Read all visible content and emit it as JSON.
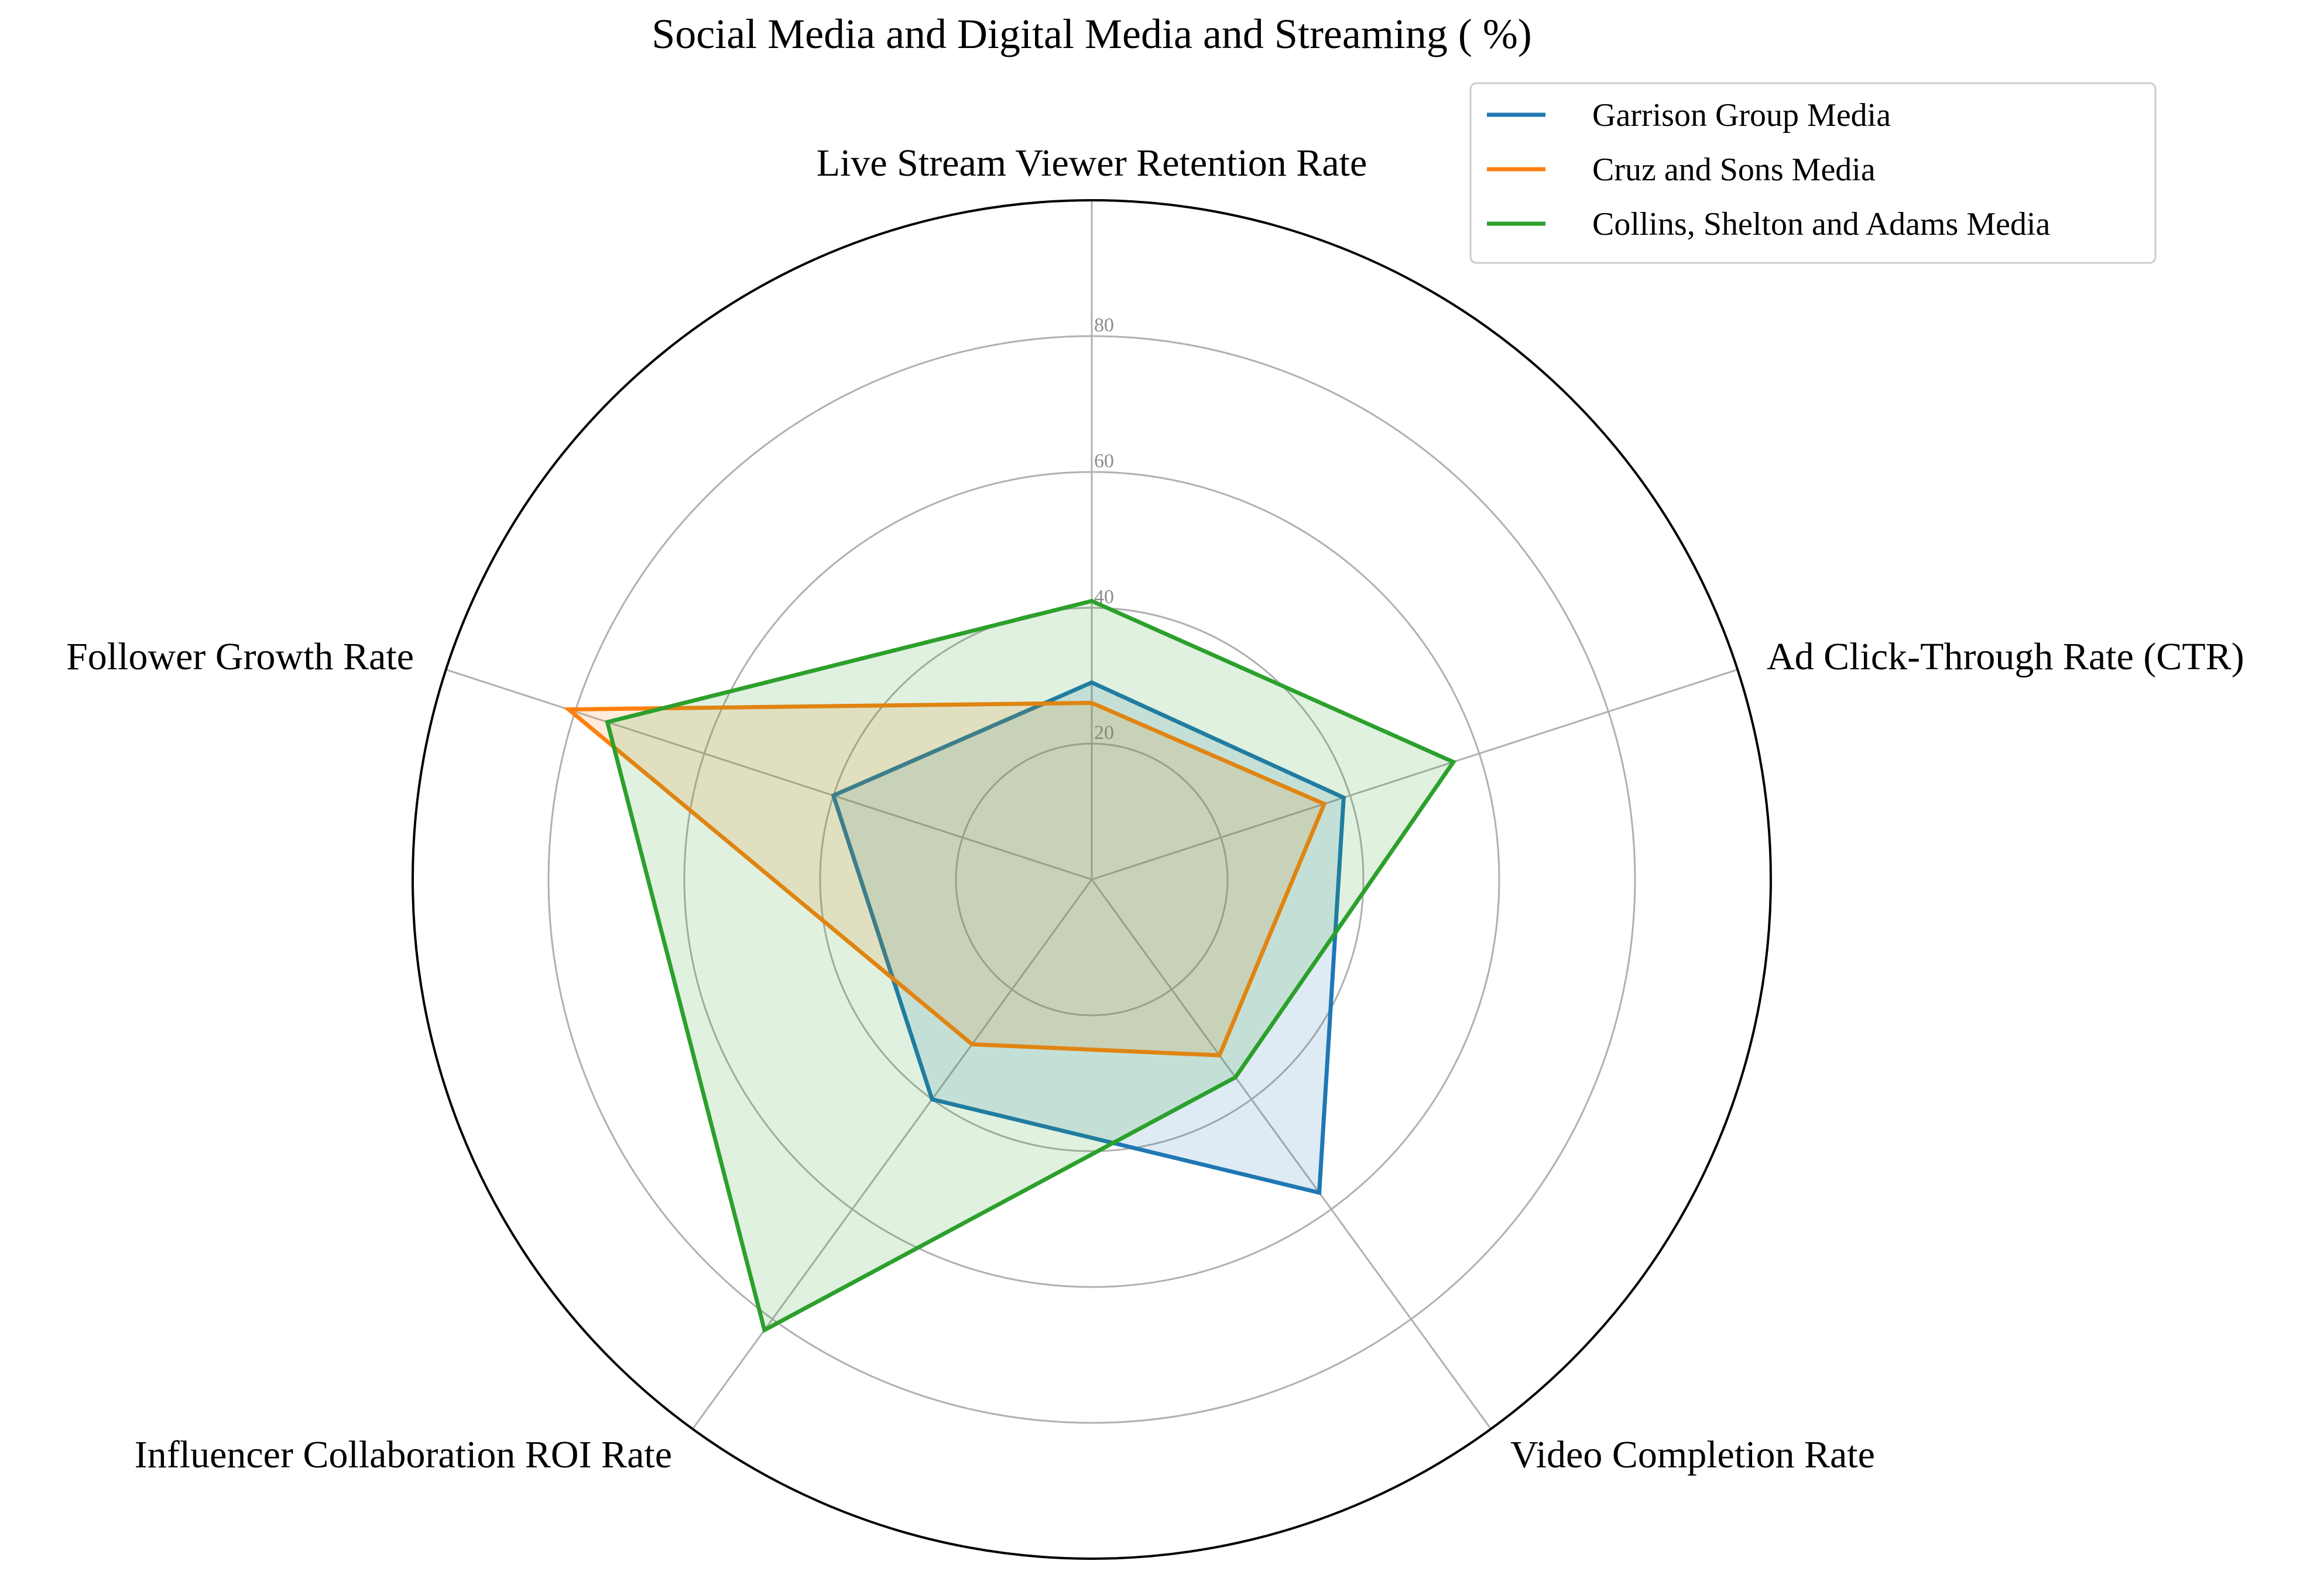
{
  "chart_data": {
    "type": "radar",
    "title": "Social Media and Digital Media and Streaming ( %)",
    "categories": [
      "Live Stream Viewer Retention Rate",
      "Ad Click-Through Rate (CTR)",
      "Video Completion Rate",
      "Influencer Collaboration ROI Rate",
      "Follower Growth Rate"
    ],
    "rlim": [
      0,
      100
    ],
    "rticks": [
      20,
      40,
      60,
      80
    ],
    "rtick_labels": [
      "20",
      "40",
      "60",
      "80"
    ],
    "grid": true,
    "legend_position": "top-right",
    "series": [
      {
        "name": "Garrison Group Media",
        "color": "#1f77b4",
        "values": [
          29,
          39,
          57,
          40,
          40
        ]
      },
      {
        "name": "Cruz and Sons Media",
        "color": "#ff7f0e",
        "values": [
          26,
          36,
          32,
          30,
          81
        ]
      },
      {
        "name": "Collins, Shelton and Adams Media",
        "color": "#2ca02c",
        "values": [
          41,
          56,
          36,
          82,
          75
        ]
      }
    ]
  }
}
